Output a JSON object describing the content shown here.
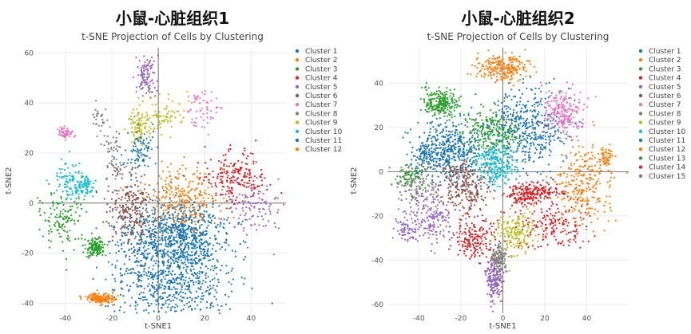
{
  "panels": [
    {
      "title": "小鼠-心脏组织1",
      "subtitle": "t-SNE Projection of Cells by Clustering"
    },
    {
      "title": "小鼠-心脏组织2",
      "subtitle": "t-SNE Projection of Cells by Clustering"
    }
  ],
  "chart_data": [
    {
      "type": "scatter",
      "title": "t-SNE Projection of Cells by Clustering",
      "xlabel": "t-SNE1",
      "ylabel": "t-SNE2",
      "xlim": [
        -52,
        55
      ],
      "ylim": [
        -44,
        62
      ],
      "xticks": [
        -40,
        -20,
        0,
        20,
        40
      ],
      "yticks": [
        -40,
        -20,
        0,
        20,
        40,
        60
      ],
      "grid": true,
      "legend_position": "right",
      "series": [
        {
          "name": "Cluster 1",
          "color": "#1f77b4",
          "n": 1500,
          "blobs": [
            [
              5,
              -30,
              12,
              10
            ],
            [
              8,
              -12,
              11,
              7
            ]
          ]
        },
        {
          "name": "Cluster 2",
          "color": "#ff7f0e",
          "n": 320,
          "blobs": [
            [
              8,
              3,
              9,
              7
            ],
            [
              -25,
              -38,
              3,
              1
            ]
          ]
        },
        {
          "name": "Cluster 3",
          "color": "#2ca02c",
          "n": 260,
          "blobs": [
            [
              -41,
              -6,
              5,
              6
            ],
            [
              -27,
              -18,
              2,
              2
            ]
          ]
        },
        {
          "name": "Cluster 4",
          "color": "#d62728",
          "n": 210,
          "blobs": [
            [
              33,
              10,
              7,
              5
            ]
          ]
        },
        {
          "name": "Cluster 5",
          "color": "#9467bd",
          "n": 210,
          "blobs": [
            [
              41,
              -2,
              6,
              6
            ],
            [
              -5,
              51,
              2,
              4
            ]
          ]
        },
        {
          "name": "Cluster 6",
          "color": "#8c564b",
          "n": 240,
          "blobs": [
            [
              -12,
              -2,
              5,
              7
            ]
          ]
        },
        {
          "name": "Cluster 7",
          "color": "#e377c2",
          "n": 120,
          "blobs": [
            [
              19,
              37,
              4,
              5
            ],
            [
              -40,
              28,
              2,
              1
            ]
          ]
        },
        {
          "name": "Cluster 8",
          "color": "#7f7f7f",
          "n": 90,
          "blobs": [
            [
              -25,
              32,
              2,
              3
            ],
            [
              -19,
              23,
              2,
              3
            ],
            [
              -18,
              14,
              2,
              2
            ]
          ]
        },
        {
          "name": "Cluster 9",
          "color": "#bcbd22",
          "n": 170,
          "blobs": [
            [
              2,
              35,
              5,
              4
            ],
            [
              -9,
              30,
              2,
              3
            ]
          ]
        },
        {
          "name": "Cluster 10",
          "color": "#17becf",
          "n": 170,
          "blobs": [
            [
              -39,
              9,
              3,
              4
            ],
            [
              -32,
              7,
              2,
              2
            ]
          ]
        },
        {
          "name": "Cluster 11",
          "color": "#1f77b4",
          "n": 90,
          "blobs": [
            [
              -8,
              20,
              3,
              5
            ]
          ]
        },
        {
          "name": "Cluster 12",
          "color": "#ff7f0e",
          "n": 90,
          "blobs": [
            [
              12,
              2,
              6,
              5
            ]
          ]
        }
      ]
    },
    {
      "type": "scatter",
      "title": "t-SNE Projection of Cells by Clustering",
      "xlabel": "t-SNE1",
      "ylabel": "t-SNE2",
      "xlim": [
        -55,
        60
      ],
      "ylim": [
        -64,
        56
      ],
      "xticks": [
        -40,
        -20,
        0,
        20,
        40
      ],
      "yticks": [
        -60,
        -40,
        -20,
        0,
        20,
        40
      ],
      "grid": true,
      "legend_position": "right",
      "series": [
        {
          "name": "Cluster 1",
          "color": "#1f77b4",
          "n": 900,
          "blobs": [
            [
              -26,
              10,
              8,
              7
            ],
            [
              12,
              20,
              9,
              9
            ]
          ]
        },
        {
          "name": "Cluster 2",
          "color": "#ff7f0e",
          "n": 500,
          "blobs": [
            [
              38,
              -6,
              7,
              9
            ],
            [
              0,
              47,
              6,
              3
            ]
          ]
        },
        {
          "name": "Cluster 3",
          "color": "#2ca02c",
          "n": 460,
          "blobs": [
            [
              -5,
              17,
              7,
              5
            ],
            [
              -30,
              31,
              4,
              3
            ]
          ]
        },
        {
          "name": "Cluster 4",
          "color": "#d62728",
          "n": 520,
          "blobs": [
            [
              23,
              -24,
              9,
              7
            ],
            [
              -14,
              -30,
              5,
              5
            ],
            [
              15,
              -9,
              6,
              2
            ]
          ]
        },
        {
          "name": "Cluster 5",
          "color": "#9467bd",
          "n": 340,
          "blobs": [
            [
              -34,
              -21,
              6,
              6
            ],
            [
              -4,
              -49,
              2,
              5
            ]
          ]
        },
        {
          "name": "Cluster 6",
          "color": "#8c564b",
          "n": 260,
          "blobs": [
            [
              -18,
              -6,
              6,
              6
            ]
          ]
        },
        {
          "name": "Cluster 7",
          "color": "#e377c2",
          "n": 230,
          "blobs": [
            [
              28,
              27,
              6,
              5
            ]
          ]
        },
        {
          "name": "Cluster 8",
          "color": "#7f7f7f",
          "n": 260,
          "blobs": [
            [
              -41,
              -6,
              6,
              5
            ],
            [
              -2,
              -39,
              2,
              4
            ]
          ]
        },
        {
          "name": "Cluster 9",
          "color": "#bcbd22",
          "n": 180,
          "blobs": [
            [
              7,
              -28,
              5,
              5
            ]
          ]
        },
        {
          "name": "Cluster 10",
          "color": "#17becf",
          "n": 240,
          "blobs": [
            [
              -4,
              3,
              5,
              5
            ]
          ]
        },
        {
          "name": "Cluster 11",
          "color": "#1f77b4",
          "n": 60,
          "blobs": [
            [
              -38,
              7,
              3,
              3
            ]
          ]
        },
        {
          "name": "Cluster 12",
          "color": "#ff7f0e",
          "n": 60,
          "blobs": [
            [
              48,
              6,
              3,
              3
            ]
          ]
        },
        {
          "name": "Cluster 13",
          "color": "#2ca02c",
          "n": 60,
          "blobs": [
            [
              -44,
              -2,
              3,
              3
            ]
          ]
        },
        {
          "name": "Cluster 14",
          "color": "#d62728",
          "n": 60,
          "blobs": [
            [
              10,
              -12,
              4,
              2
            ]
          ]
        },
        {
          "name": "Cluster 15",
          "color": "#9467bd",
          "n": 60,
          "blobs": [
            [
              -45,
              -26,
              3,
              3
            ]
          ]
        }
      ]
    }
  ]
}
